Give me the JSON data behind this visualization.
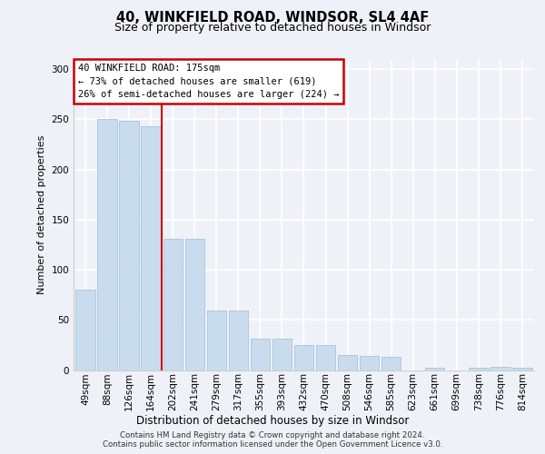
{
  "title1": "40, WINKFIELD ROAD, WINDSOR, SL4 4AF",
  "title2": "Size of property relative to detached houses in Windsor",
  "xlabel": "Distribution of detached houses by size in Windsor",
  "ylabel": "Number of detached properties",
  "categories": [
    "49sqm",
    "88sqm",
    "126sqm",
    "164sqm",
    "202sqm",
    "241sqm",
    "279sqm",
    "317sqm",
    "355sqm",
    "393sqm",
    "432sqm",
    "470sqm",
    "508sqm",
    "546sqm",
    "585sqm",
    "623sqm",
    "661sqm",
    "699sqm",
    "738sqm",
    "776sqm",
    "814sqm"
  ],
  "bar_values": [
    80,
    250,
    248,
    243,
    131,
    131,
    59,
    59,
    31,
    31,
    25,
    25,
    15,
    14,
    13,
    0,
    2,
    0,
    2,
    3,
    2
  ],
  "bar_color": "#c9dcee",
  "bar_edge_color": "#a8c4db",
  "vline_pos": 3.5,
  "vline_color": "#cc0000",
  "annotation_line1": "40 WINKFIELD ROAD: 175sqm",
  "annotation_line2": "← 73% of detached houses are smaller (619)",
  "annotation_line3": "26% of semi-detached houses are larger (224) →",
  "annotation_box_edgecolor": "#cc0000",
  "footer1": "Contains HM Land Registry data © Crown copyright and database right 2024.",
  "footer2": "Contains public sector information licensed under the Open Government Licence v3.0.",
  "ylim": [
    0,
    310
  ],
  "yticks": [
    0,
    50,
    100,
    150,
    200,
    250,
    300
  ],
  "bg_color": "#eef2f8",
  "title1_fontsize": 10.5,
  "title2_fontsize": 9,
  "ylabel_fontsize": 8,
  "xlabel_fontsize": 8.5,
  "tick_fontsize": 7.5,
  "footer_fontsize": 6.2
}
